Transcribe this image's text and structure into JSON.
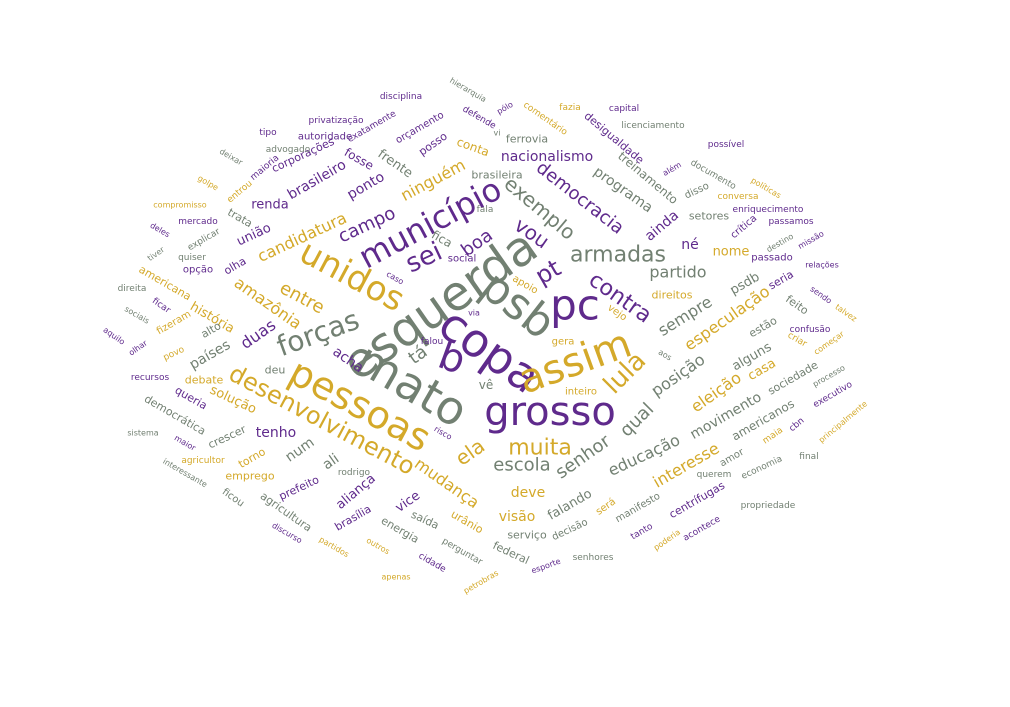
{
  "colors": {
    "purple": "#5f2a8c",
    "gold": "#d4a92a",
    "gray": "#728072"
  },
  "words": [
    {
      "text": "esquerda",
      "color": "gray"
    },
    {
      "text": "psb",
      "color": "gray"
    },
    {
      "text": "copa",
      "color": "purple"
    },
    {
      "text": "grosso",
      "color": "purple"
    },
    {
      "text": "mato",
      "color": "gray"
    },
    {
      "text": "pessoas",
      "color": "gold"
    },
    {
      "text": "assim",
      "color": "gold"
    },
    {
      "text": "pc",
      "color": "purple"
    },
    {
      "text": "b",
      "color": "purple"
    },
    {
      "text": "unidos",
      "color": "gold"
    },
    {
      "text": "município",
      "color": "purple"
    },
    {
      "text": "forças",
      "color": "gray"
    },
    {
      "text": "desenvolvimento",
      "color": "gold"
    },
    {
      "text": "armadas",
      "color": "gray"
    },
    {
      "text": "lula",
      "color": "gold"
    },
    {
      "text": "contra",
      "color": "purple"
    },
    {
      "text": "sei",
      "color": "purple"
    },
    {
      "text": "pt",
      "color": "purple"
    },
    {
      "text": "muita",
      "color": "gold"
    },
    {
      "text": "exemplo",
      "color": "gray"
    },
    {
      "text": "democracia",
      "color": "purple"
    },
    {
      "text": "vou",
      "color": "purple"
    },
    {
      "text": "campo",
      "color": "purple"
    },
    {
      "text": "entre",
      "color": "gold"
    },
    {
      "text": "escola",
      "color": "gray"
    },
    {
      "text": "senhor",
      "color": "gray"
    },
    {
      "text": "partido",
      "color": "gray"
    },
    {
      "text": "posição",
      "color": "gray"
    },
    {
      "text": "sempre",
      "color": "gray"
    },
    {
      "text": "mudança",
      "color": "gold"
    },
    {
      "text": "ela",
      "color": "gold"
    },
    {
      "text": "educação",
      "color": "gray"
    },
    {
      "text": "qual",
      "color": "gray"
    },
    {
      "text": "tá",
      "color": "gray"
    },
    {
      "text": "boa",
      "color": "purple"
    },
    {
      "text": "amazônia",
      "color": "gold"
    },
    {
      "text": "candidatura",
      "color": "gold"
    },
    {
      "text": "ninguém",
      "color": "gold"
    },
    {
      "text": "nacionalismo",
      "color": "purple"
    },
    {
      "text": "programa",
      "color": "gray"
    },
    {
      "text": "ainda",
      "color": "purple"
    },
    {
      "text": "né",
      "color": "purple"
    },
    {
      "text": "especulação",
      "color": "gold"
    },
    {
      "text": "eleição",
      "color": "gold"
    },
    {
      "text": "interesse",
      "color": "gold"
    },
    {
      "text": "movimento",
      "color": "gray"
    },
    {
      "text": "duas",
      "color": "purple"
    },
    {
      "text": "acha",
      "color": "purple"
    },
    {
      "text": "brasileiro",
      "color": "purple"
    },
    {
      "text": "ponto",
      "color": "purple"
    },
    {
      "text": "deve",
      "color": "gold"
    },
    {
      "text": "visão",
      "color": "gold"
    },
    {
      "text": "falando",
      "color": "gray"
    },
    {
      "text": "aliança",
      "color": "purple"
    },
    {
      "text": "vice",
      "color": "purple"
    },
    {
      "text": "tenho",
      "color": "purple"
    },
    {
      "text": "num",
      "color": "gray"
    },
    {
      "text": "ali",
      "color": "gray"
    },
    {
      "text": "países",
      "color": "gray"
    },
    {
      "text": "solução",
      "color": "gold"
    },
    {
      "text": "história",
      "color": "gold"
    },
    {
      "text": "renda",
      "color": "purple"
    },
    {
      "text": "união",
      "color": "purple"
    },
    {
      "text": "frente",
      "color": "gray"
    },
    {
      "text": "treinamento",
      "color": "gray"
    },
    {
      "text": "desigualdade",
      "color": "purple"
    },
    {
      "text": "nome",
      "color": "gold"
    },
    {
      "text": "psdb",
      "color": "gray"
    },
    {
      "text": "alguns",
      "color": "gray"
    },
    {
      "text": "americanos",
      "color": "gray"
    },
    {
      "text": "sociedade",
      "color": "gray"
    },
    {
      "text": "casa",
      "color": "gold"
    },
    {
      "text": "estão",
      "color": "gray"
    },
    {
      "text": "feito",
      "color": "gray"
    },
    {
      "text": "seria",
      "color": "purple"
    },
    {
      "text": "vê",
      "color": "gray"
    },
    {
      "text": "fica",
      "color": "gray"
    },
    {
      "text": "conta",
      "color": "gold"
    },
    {
      "text": "posso",
      "color": "purple"
    },
    {
      "text": "fosse",
      "color": "purple"
    },
    {
      "text": "corporações",
      "color": "purple"
    },
    {
      "text": "orçamento",
      "color": "purple"
    },
    {
      "text": "ferrovia",
      "color": "gray"
    },
    {
      "text": "brasileira",
      "color": "gray"
    },
    {
      "text": "setores",
      "color": "gray"
    },
    {
      "text": "disso",
      "color": "gray"
    },
    {
      "text": "documento",
      "color": "gray"
    },
    {
      "text": "crítica",
      "color": "purple"
    },
    {
      "text": "passado",
      "color": "purple"
    },
    {
      "text": "direitos",
      "color": "gold"
    },
    {
      "text": "apoio",
      "color": "gold"
    },
    {
      "text": "social",
      "color": "purple"
    },
    {
      "text": "vejo",
      "color": "gold"
    },
    {
      "text": "inteiro",
      "color": "gold"
    },
    {
      "text": "gera",
      "color": "gold"
    },
    {
      "text": "debate",
      "color": "gold"
    },
    {
      "text": "queria",
      "color": "purple"
    },
    {
      "text": "crescer",
      "color": "gray"
    },
    {
      "text": "democrática",
      "color": "gray"
    },
    {
      "text": "torno",
      "color": "gold"
    },
    {
      "text": "emprego",
      "color": "gold"
    },
    {
      "text": "prefeito",
      "color": "purple"
    },
    {
      "text": "agricultura",
      "color": "gray"
    },
    {
      "text": "brasília",
      "color": "purple"
    },
    {
      "text": "energia",
      "color": "gray"
    },
    {
      "text": "saída",
      "color": "gray"
    },
    {
      "text": "urânio",
      "color": "gold"
    },
    {
      "text": "federal",
      "color": "gray"
    },
    {
      "text": "serviço",
      "color": "gray"
    },
    {
      "text": "decisão",
      "color": "gray"
    },
    {
      "text": "será",
      "color": "gold"
    },
    {
      "text": "manifesto",
      "color": "gray"
    },
    {
      "text": "centrífugas",
      "color": "purple"
    },
    {
      "text": "amor",
      "color": "gray"
    },
    {
      "text": "querem",
      "color": "gray"
    },
    {
      "text": "economia",
      "color": "gray"
    },
    {
      "text": "final",
      "color": "gray"
    },
    {
      "text": "propriedade",
      "color": "gray"
    },
    {
      "text": "acontece",
      "color": "purple"
    },
    {
      "text": "tanto",
      "color": "purple"
    },
    {
      "text": "poderia",
      "color": "gold"
    },
    {
      "text": "senhores",
      "color": "gray"
    },
    {
      "text": "esporte",
      "color": "purple"
    },
    {
      "text": "perguntar",
      "color": "gray"
    },
    {
      "text": "cidade",
      "color": "purple"
    },
    {
      "text": "petrobras",
      "color": "gold"
    },
    {
      "text": "apenas",
      "color": "gold"
    },
    {
      "text": "outros",
      "color": "gold"
    },
    {
      "text": "partidos",
      "color": "gold"
    },
    {
      "text": "discurso",
      "color": "purple"
    },
    {
      "text": "ficou",
      "color": "gray"
    },
    {
      "text": "interessante",
      "color": "gray"
    },
    {
      "text": "agricultor",
      "color": "gold"
    },
    {
      "text": "maior",
      "color": "purple"
    },
    {
      "text": "sistema",
      "color": "gray"
    },
    {
      "text": "recursos",
      "color": "purple"
    },
    {
      "text": "povo",
      "color": "gold"
    },
    {
      "text": "olhar",
      "color": "purple"
    },
    {
      "text": "aquilo",
      "color": "purple"
    },
    {
      "text": "sociais",
      "color": "gray"
    },
    {
      "text": "ficar",
      "color": "purple"
    },
    {
      "text": "fizeram",
      "color": "gold"
    },
    {
      "text": "direita",
      "color": "gray"
    },
    {
      "text": "americana",
      "color": "gold"
    },
    {
      "text": "tiver",
      "color": "gray"
    },
    {
      "text": "opção",
      "color": "purple"
    },
    {
      "text": "quiser",
      "color": "gray"
    },
    {
      "text": "explicar",
      "color": "gray"
    },
    {
      "text": "deles",
      "color": "purple"
    },
    {
      "text": "mercado",
      "color": "purple"
    },
    {
      "text": "compromisso",
      "color": "gold"
    },
    {
      "text": "golpe",
      "color": "gold"
    },
    {
      "text": "entrou",
      "color": "gold"
    },
    {
      "text": "maioria",
      "color": "purple"
    },
    {
      "text": "deixar",
      "color": "gray"
    },
    {
      "text": "trata",
      "color": "gray"
    },
    {
      "text": "olha",
      "color": "purple"
    },
    {
      "text": "alto",
      "color": "gray"
    },
    {
      "text": "deu",
      "color": "gray"
    },
    {
      "text": "tipo",
      "color": "purple"
    },
    {
      "text": "advogado",
      "color": "gray"
    },
    {
      "text": "autoridade",
      "color": "purple"
    },
    {
      "text": "privatização",
      "color": "purple"
    },
    {
      "text": "exatamente",
      "color": "purple"
    },
    {
      "text": "disciplina",
      "color": "purple"
    },
    {
      "text": "hierarquia",
      "color": "gray"
    },
    {
      "text": "defende",
      "color": "purple"
    },
    {
      "text": "pólo",
      "color": "purple"
    },
    {
      "text": "vi",
      "color": "gray"
    },
    {
      "text": "comentário",
      "color": "gold"
    },
    {
      "text": "fazia",
      "color": "gold"
    },
    {
      "text": "capital",
      "color": "purple"
    },
    {
      "text": "licenciamento",
      "color": "gray"
    },
    {
      "text": "possível",
      "color": "purple"
    },
    {
      "text": "além",
      "color": "purple"
    },
    {
      "text": "conversa",
      "color": "gold"
    },
    {
      "text": "políticas",
      "color": "gold"
    },
    {
      "text": "enriquecimento",
      "color": "purple"
    },
    {
      "text": "passamos",
      "color": "purple"
    },
    {
      "text": "destino",
      "color": "gray"
    },
    {
      "text": "missão",
      "color": "purple"
    },
    {
      "text": "relações",
      "color": "purple"
    },
    {
      "text": "sendo",
      "color": "purple"
    },
    {
      "text": "talvez",
      "color": "gold"
    },
    {
      "text": "começar",
      "color": "gold"
    },
    {
      "text": "criar",
      "color": "gold"
    },
    {
      "text": "confusão",
      "color": "purple"
    },
    {
      "text": "processo",
      "color": "gray"
    },
    {
      "text": "executivo",
      "color": "purple"
    },
    {
      "text": "principalmente",
      "color": "gold"
    },
    {
      "text": "cbn",
      "color": "purple"
    },
    {
      "text": "maia",
      "color": "gold"
    },
    {
      "text": "fala",
      "color": "gray"
    },
    {
      "text": "via",
      "color": "purple"
    },
    {
      "text": "falou",
      "color": "purple"
    },
    {
      "text": "caso",
      "color": "purple"
    },
    {
      "text": "aos",
      "color": "gray"
    },
    {
      "text": "rodrigo",
      "color": "gray"
    },
    {
      "text": "risco",
      "color": "purple"
    }
  ]
}
